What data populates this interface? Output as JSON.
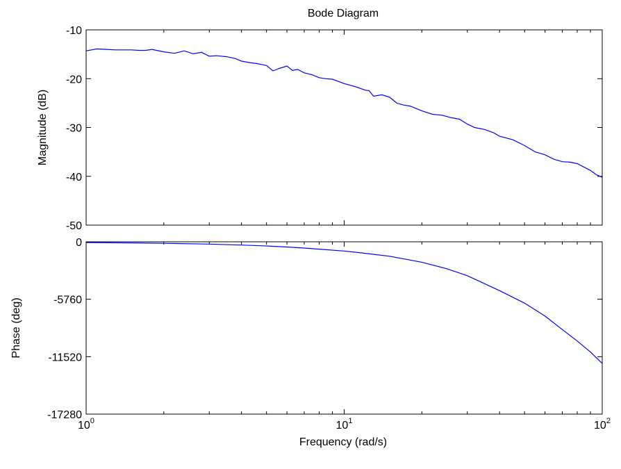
{
  "figure": {
    "title": "Bode Diagram",
    "xlabel": "Frequency  (rad/s)"
  },
  "chart_data": [
    {
      "type": "line",
      "panel": "magnitude",
      "title": "Bode Diagram",
      "xlabel": "Frequency  (rad/s)",
      "ylabel": "Magnitude (dB)",
      "xscale": "log",
      "xlim": [
        1,
        100
      ],
      "ylim": [
        -50,
        -10
      ],
      "yticks": [
        -50,
        -40,
        -30,
        -20,
        -10
      ],
      "ytick_labels": [
        "-50",
        "-40",
        "-30",
        "-20",
        "-10"
      ],
      "xtick_labels": [
        {
          "base": "10",
          "exp": "0"
        },
        {
          "base": "10",
          "exp": "1"
        },
        {
          "base": "10",
          "exp": "2"
        }
      ],
      "line_color": "#0000ff",
      "series": [
        {
          "x": [
            1,
            1.05,
            1.1,
            1.2,
            1.3,
            1.4,
            1.5,
            1.6,
            1.7,
            1.8,
            2.0,
            2.2,
            2.4,
            2.6,
            2.8,
            3.0,
            3.2,
            3.5,
            3.8,
            4.0,
            4.3,
            4.6,
            5.0,
            5.3,
            5.6,
            6.0,
            6.3,
            6.6,
            7.0,
            7.5,
            8.0,
            8.5,
            9.0,
            10,
            11,
            12,
            12.5,
            13,
            14,
            15,
            16,
            17,
            18,
            20,
            22,
            24,
            26,
            28,
            30,
            32,
            35,
            38,
            40,
            45,
            50,
            55,
            60,
            65,
            70,
            75,
            80,
            90,
            95,
            100
          ],
          "y": [
            -14.3,
            -14.1,
            -13.9,
            -14.0,
            -14.1,
            -14.1,
            -14.1,
            -14.2,
            -14.2,
            -14.0,
            -14.5,
            -14.8,
            -14.3,
            -14.9,
            -14.6,
            -15.4,
            -15.3,
            -15.5,
            -15.9,
            -16.4,
            -16.7,
            -16.9,
            -17.3,
            -18.4,
            -17.9,
            -17.4,
            -18.3,
            -18.1,
            -18.8,
            -19.2,
            -19.8,
            -20.0,
            -20.1,
            -21.0,
            -21.6,
            -22.3,
            -22.5,
            -23.6,
            -23.3,
            -23.8,
            -25.0,
            -25.4,
            -25.6,
            -26.6,
            -27.3,
            -27.5,
            -28.0,
            -28.3,
            -29.3,
            -30.0,
            -30.4,
            -31.1,
            -31.8,
            -32.5,
            -33.7,
            -35.0,
            -35.6,
            -36.5,
            -37.0,
            -37.1,
            -37.4,
            -38.8,
            -39.7,
            -40.2
          ]
        }
      ]
    },
    {
      "type": "line",
      "panel": "phase",
      "xlabel": "Frequency  (rad/s)",
      "ylabel": "Phase (deg)",
      "xscale": "log",
      "xlim": [
        1,
        100
      ],
      "ylim": [
        -17280,
        0
      ],
      "yticks": [
        -17280,
        -11520,
        -5760,
        0
      ],
      "ytick_labels": [
        "-17280",
        "-11520",
        "-5760",
        "0"
      ],
      "xtick_labels": [
        {
          "base": "10",
          "exp": "0"
        },
        {
          "base": "10",
          "exp": "1"
        },
        {
          "base": "10",
          "exp": "2"
        }
      ],
      "line_color": "#0000ff",
      "series": [
        {
          "x": [
            1,
            1.5,
            2,
            3,
            4,
            5,
            6,
            7,
            8,
            10,
            12,
            15,
            20,
            25,
            30,
            35,
            40,
            50,
            60,
            70,
            80,
            90,
            100
          ],
          "y": [
            -80,
            -110,
            -150,
            -230,
            -330,
            -420,
            -520,
            -630,
            -740,
            -930,
            -1150,
            -1450,
            -2050,
            -2700,
            -3400,
            -4200,
            -4900,
            -6150,
            -7450,
            -8800,
            -9950,
            -11050,
            -12200
          ]
        }
      ]
    }
  ]
}
